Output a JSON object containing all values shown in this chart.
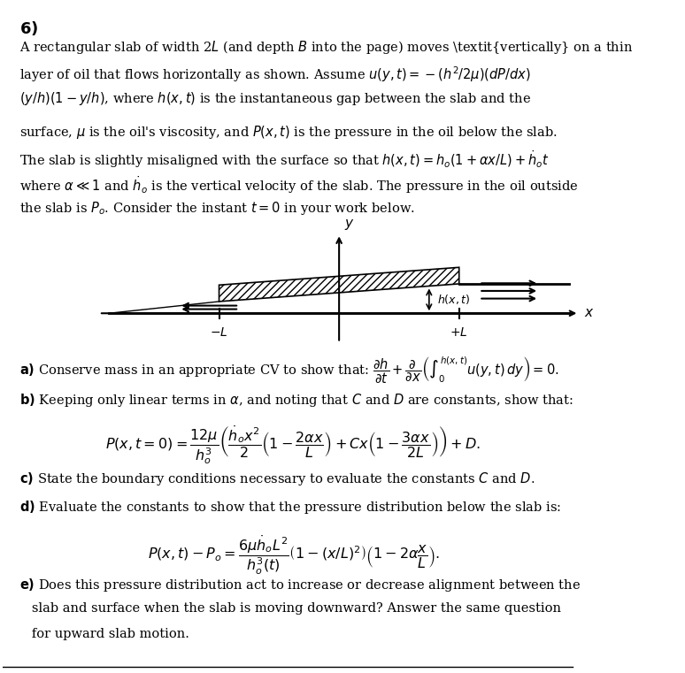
{
  "title_number": "6)",
  "background_color": "#ffffff",
  "text_color": "#000000",
  "figure_width": 7.74,
  "figure_height": 7.61,
  "dpi": 100,
  "paragraph1": "A rectangular slab of width 2$L$ (and depth $B$ into the page) moves \\textit{vertically} on a thin\nlayer of oil that flows horizontally as shown. Assume $u(y, t) = -(h^2/2\\mu)(dP/dx)$\n$(y/h)(1 - y/h)$, where $h(x,t)$ is the instantaneous gap between the slab and the",
  "paragraph2": "surface, $\\mu$ is the oil’s viscosity, and $P(x,t)$ is the pressure in the oil below the slab.\nThe slab is slightly misaligned with the surface so that $h(x, t) = h_o(1 + \\alpha x/L) + \\dot{h}_o t$\nwhere $\\alpha \\ll 1$ and $\\dot{h}_o$ is the vertical velocity of the slab. The pressure in the oil outside\nthe slab is $P_o$. Consider the instant $t = 0$ in your work below.",
  "part_a": "\\textbf{a)} Conserve mass in an appropriate CV to show that: $\\dfrac{\\partial h}{\\partial t} + \\dfrac{\\partial}{\\partial x}\\left(\\int_0^{h(x,t)} u(y,t)dy\\right) = 0.$",
  "part_b": "\\textbf{b)} Keeping only linear terms in $\\alpha$, and noting that $C$ and $D$ are constants, show that:",
  "eq_b": "$P(x,t=0) = \\dfrac{12\\mu}{h_o^3}\\left(\\dfrac{\\dot{h}_o x^2}{2}\\left(1 - \\dfrac{2\\alpha x}{L}\\right) + Cx\\left(1 - \\dfrac{3\\alpha x}{2L}\\right)\\right) + D.$",
  "part_c": "\\textbf{c)} State the boundary conditions necessary to evaluate the constants $C$ and $D$.",
  "part_d": "\\textbf{d)} Evaluate the constants to show that the pressure distribution below the slab is:",
  "eq_d": "$P(x,t) - P_o = \\dfrac{6\\mu\\dot{h}_o L^2}{h_o^3(t)}\\left(1 - (x/L)^2\\right)\\left(1 - 2\\alpha\\dfrac{x}{L}\\right).$",
  "part_e": "\\textbf{e)} Does this pressure distribution act to increase or decrease alignment between the\n   slab and surface when the slab is moving downward? Answer the same question\n   for upward slab motion."
}
